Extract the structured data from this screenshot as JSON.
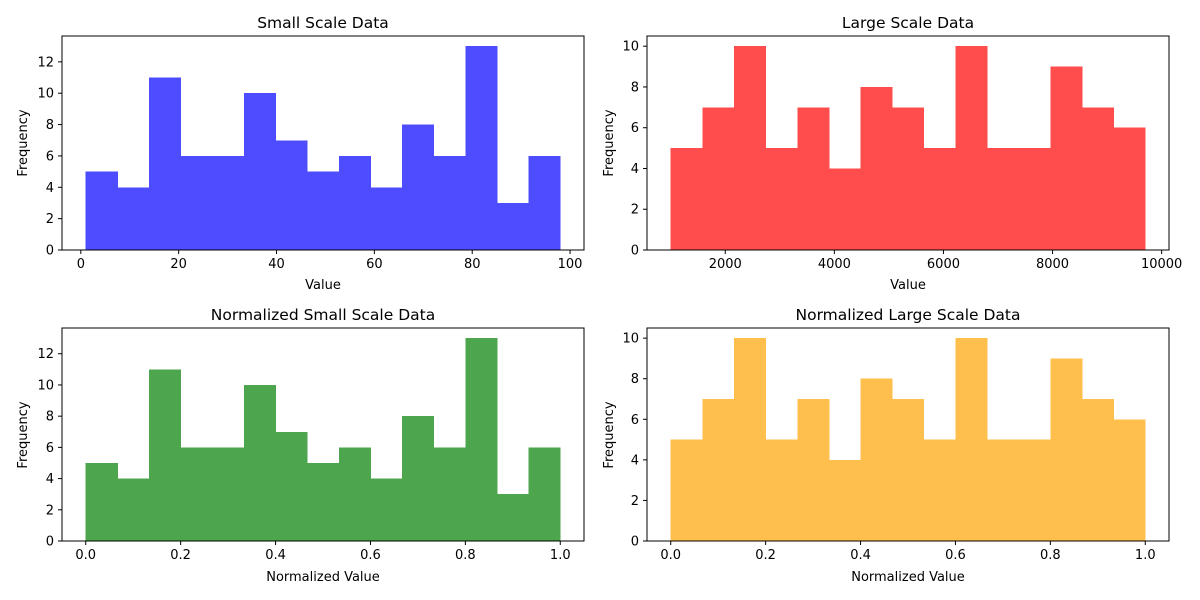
{
  "figure": {
    "background": "#ffffff"
  },
  "chart_data": [
    {
      "type": "bar",
      "subtype": "histogram",
      "title": "Small Scale Data",
      "xlabel": "Value",
      "ylabel": "Frequency",
      "color": "#4d4dff",
      "bin_edges": [
        1.0,
        7.47,
        13.93,
        20.4,
        26.87,
        33.33,
        39.8,
        46.27,
        52.73,
        59.2,
        65.67,
        72.13,
        78.6,
        85.07,
        91.53,
        98.0
      ],
      "counts": [
        5,
        4,
        11,
        6,
        6,
        10,
        7,
        5,
        6,
        4,
        8,
        6,
        13,
        3,
        6
      ],
      "xlim": [
        -3.85,
        102.85
      ],
      "ylim": [
        0,
        13.65
      ],
      "xticks": [
        0,
        20,
        40,
        60,
        80,
        100
      ],
      "xtick_labels": [
        "0",
        "20",
        "40",
        "60",
        "80",
        "100"
      ],
      "yticks": [
        0,
        2,
        4,
        6,
        8,
        10,
        12
      ],
      "ytick_labels": [
        "0",
        "2",
        "4",
        "6",
        "8",
        "10",
        "12"
      ],
      "grid": false
    },
    {
      "type": "bar",
      "subtype": "histogram",
      "title": "Large Scale Data",
      "xlabel": "Value",
      "ylabel": "Frequency",
      "color": "#ff4d4d",
      "bin_edges": [
        1000,
        1580,
        2160,
        2740,
        3320,
        3900,
        4480,
        5060,
        5640,
        6220,
        6800,
        7380,
        7960,
        8540,
        9120,
        9700
      ],
      "counts": [
        5,
        7,
        10,
        5,
        7,
        4,
        8,
        7,
        5,
        10,
        5,
        5,
        9,
        7,
        6
      ],
      "xlim": [
        565,
        10135
      ],
      "ylim": [
        0,
        10.5
      ],
      "xticks": [
        2000,
        4000,
        6000,
        8000,
        10000
      ],
      "xtick_labels": [
        "2000",
        "4000",
        "6000",
        "8000",
        "10000"
      ],
      "yticks": [
        0,
        2,
        4,
        6,
        8,
        10
      ],
      "ytick_labels": [
        "0",
        "2",
        "4",
        "6",
        "8",
        "10"
      ],
      "grid": false
    },
    {
      "type": "bar",
      "subtype": "histogram",
      "title": "Normalized Small Scale Data",
      "xlabel": "Normalized Value",
      "ylabel": "Frequency",
      "color": "#4da64d",
      "bin_edges": [
        0.0,
        0.0667,
        0.1333,
        0.2,
        0.2667,
        0.3333,
        0.4,
        0.4667,
        0.5333,
        0.6,
        0.6667,
        0.7333,
        0.8,
        0.8667,
        0.9333,
        1.0
      ],
      "counts": [
        5,
        4,
        11,
        6,
        6,
        10,
        7,
        5,
        6,
        4,
        8,
        6,
        13,
        3,
        6
      ],
      "xlim": [
        -0.05,
        1.05
      ],
      "ylim": [
        0,
        13.65
      ],
      "xticks": [
        0.0,
        0.2,
        0.4,
        0.6,
        0.8,
        1.0
      ],
      "xtick_labels": [
        "0.0",
        "0.2",
        "0.4",
        "0.6",
        "0.8",
        "1.0"
      ],
      "yticks": [
        0,
        2,
        4,
        6,
        8,
        10,
        12
      ],
      "ytick_labels": [
        "0",
        "2",
        "4",
        "6",
        "8",
        "10",
        "12"
      ],
      "grid": false
    },
    {
      "type": "bar",
      "subtype": "histogram",
      "title": "Normalized Large Scale Data",
      "xlabel": "Normalized Value",
      "ylabel": "Frequency",
      "color": "#ffbf4d",
      "bin_edges": [
        0.0,
        0.0667,
        0.1333,
        0.2,
        0.2667,
        0.3333,
        0.4,
        0.4667,
        0.5333,
        0.6,
        0.6667,
        0.7333,
        0.8,
        0.8667,
        0.9333,
        1.0
      ],
      "counts": [
        5,
        7,
        10,
        5,
        7,
        4,
        8,
        7,
        5,
        10,
        5,
        5,
        9,
        7,
        6
      ],
      "xlim": [
        -0.05,
        1.05
      ],
      "ylim": [
        0,
        10.5
      ],
      "xticks": [
        0.0,
        0.2,
        0.4,
        0.6,
        0.8,
        1.0
      ],
      "xtick_labels": [
        "0.0",
        "0.2",
        "0.4",
        "0.6",
        "0.8",
        "1.0"
      ],
      "yticks": [
        0,
        2,
        4,
        6,
        8,
        10
      ],
      "ytick_labels": [
        "0",
        "2",
        "4",
        "6",
        "8",
        "10"
      ],
      "grid": false
    }
  ]
}
